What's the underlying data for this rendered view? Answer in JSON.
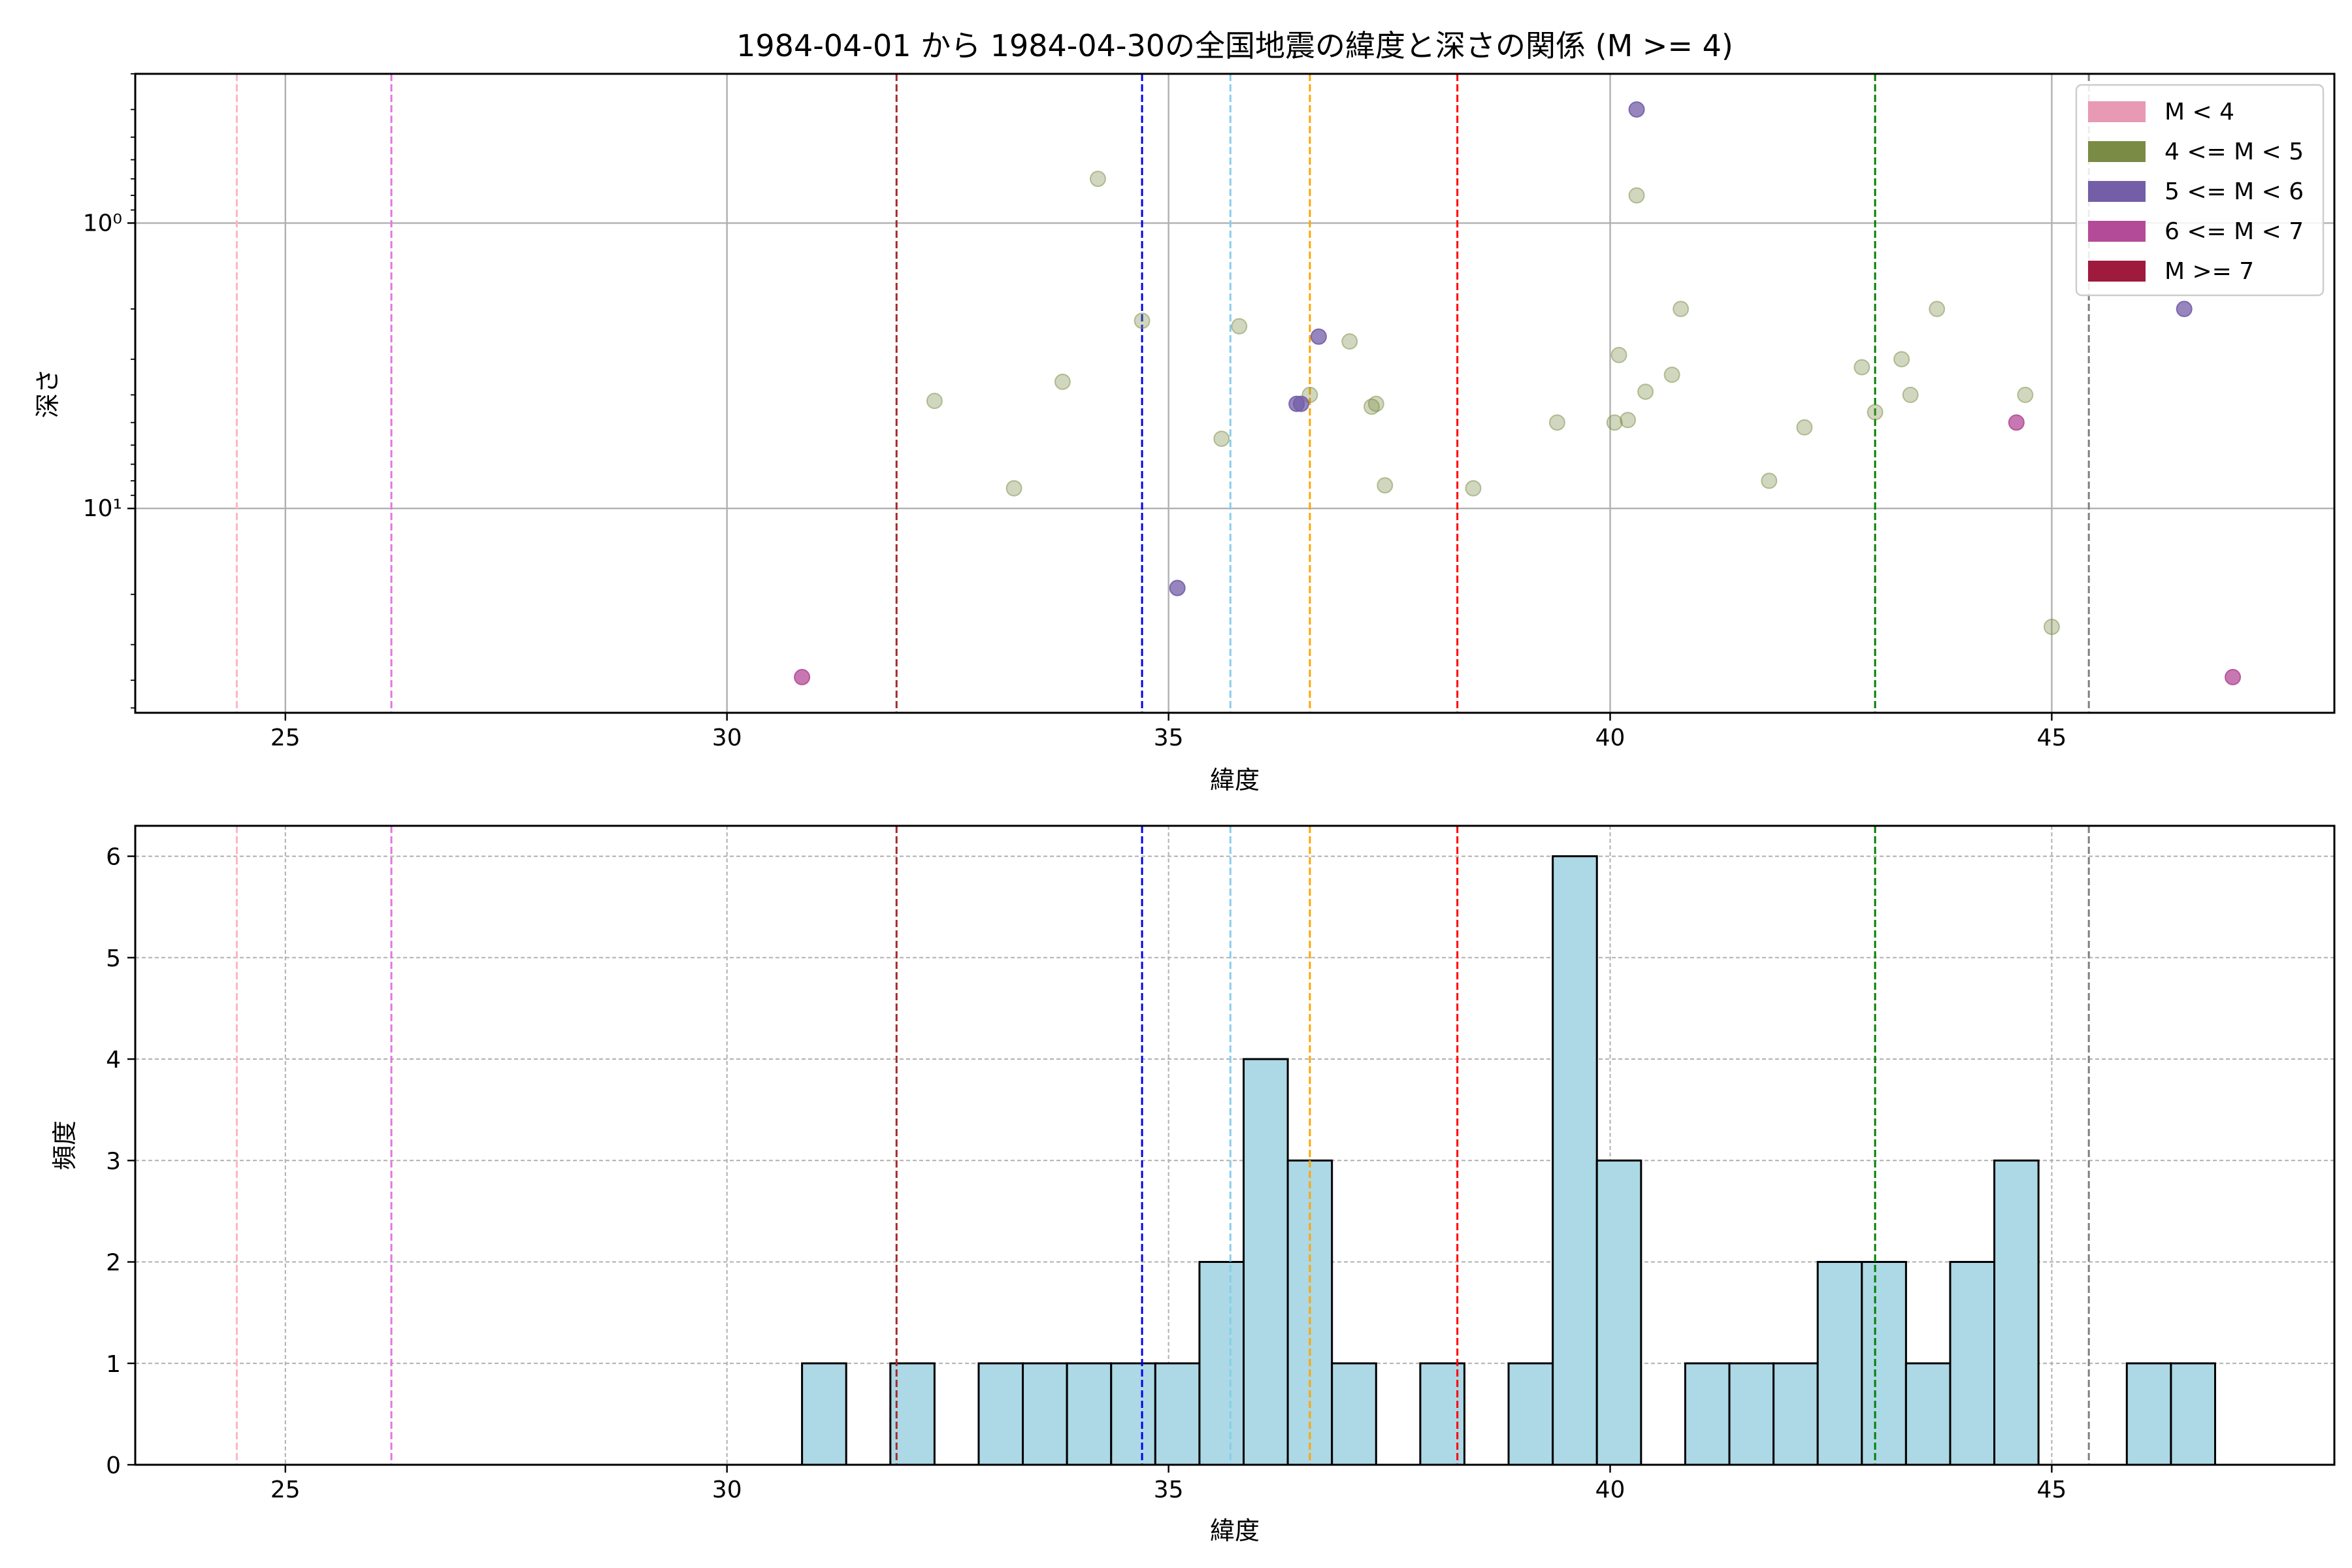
{
  "chart_data": [
    {
      "type": "scatter",
      "title": "1984-04-01 から 1984-04-30の全国地震の緯度と深さの関係 (M >= 4)",
      "xlabel": "緯度",
      "ylabel": "深さ",
      "xlim": [
        23.3,
        48.2
      ],
      "ylim": [
        52,
        0.3
      ],
      "y_scale": "log",
      "y_inverted": true,
      "xticks": [
        25,
        30,
        35,
        40,
        45
      ],
      "xtick_labels": [
        "25",
        "30",
        "35",
        "40",
        "45"
      ],
      "yticks": [
        1,
        10
      ],
      "ytick_labels": [
        "10⁰",
        "10¹"
      ],
      "grid": true,
      "legend_position": "top-right",
      "legend": [
        {
          "label": "M < 4",
          "color": "#e899b4"
        },
        {
          "label": "4 <= M < 5",
          "color": "#7a8b45"
        },
        {
          "label": "5 <= M < 6",
          "color": "#735ea7"
        },
        {
          "label": "6 <= M < 7",
          "color": "#b44b98"
        },
        {
          "label": "M >= 7",
          "color": "#9e1b3d"
        }
      ],
      "vlines": [
        {
          "x": 24.45,
          "color": "#ffb6c1"
        },
        {
          "x": 26.2,
          "color": "#e377dc"
        },
        {
          "x": 31.92,
          "color": "#a52a2a"
        },
        {
          "x": 34.7,
          "color": "#0000ee"
        },
        {
          "x": 35.7,
          "color": "#87ceeb"
        },
        {
          "x": 36.6,
          "color": "#ffa500"
        },
        {
          "x": 38.27,
          "color": "#ff0000"
        },
        {
          "x": 43.0,
          "color": "#008000"
        },
        {
          "x": 45.42,
          "color": "#808080"
        }
      ],
      "series": [
        {
          "color": "#7a8b45",
          "opacity": 0.35,
          "points": [
            {
              "x": 32.35,
              "y": 4.2
            },
            {
              "x": 33.25,
              "y": 8.5
            },
            {
              "x": 33.8,
              "y": 3.6
            },
            {
              "x": 34.2,
              "y": 0.7
            },
            {
              "x": 34.7,
              "y": 2.2
            },
            {
              "x": 35.6,
              "y": 5.7
            },
            {
              "x": 35.8,
              "y": 2.3
            },
            {
              "x": 36.6,
              "y": 4.0
            },
            {
              "x": 37.05,
              "y": 2.6
            },
            {
              "x": 37.3,
              "y": 4.4
            },
            {
              "x": 37.35,
              "y": 4.3
            },
            {
              "x": 37.45,
              "y": 8.3
            },
            {
              "x": 38.45,
              "y": 8.5
            },
            {
              "x": 39.4,
              "y": 5.0
            },
            {
              "x": 40.05,
              "y": 5.0
            },
            {
              "x": 40.1,
              "y": 2.9
            },
            {
              "x": 40.2,
              "y": 4.9
            },
            {
              "x": 40.3,
              "y": 0.8
            },
            {
              "x": 40.4,
              "y": 3.9
            },
            {
              "x": 40.7,
              "y": 3.4
            },
            {
              "x": 40.8,
              "y": 2.0
            },
            {
              "x": 41.8,
              "y": 8.0
            },
            {
              "x": 42.2,
              "y": 5.2
            },
            {
              "x": 42.85,
              "y": 3.2
            },
            {
              "x": 43.0,
              "y": 4.6
            },
            {
              "x": 43.3,
              "y": 3.0
            },
            {
              "x": 43.4,
              "y": 4.0
            },
            {
              "x": 43.7,
              "y": 2.0
            },
            {
              "x": 44.7,
              "y": 4.0
            },
            {
              "x": 45.0,
              "y": 26.0
            }
          ]
        },
        {
          "color": "#735ea7",
          "opacity": 0.75,
          "points": [
            {
              "x": 35.1,
              "y": 19.0
            },
            {
              "x": 36.45,
              "y": 4.3
            },
            {
              "x": 36.5,
              "y": 4.3
            },
            {
              "x": 36.7,
              "y": 2.5
            },
            {
              "x": 40.3,
              "y": 0.4
            },
            {
              "x": 46.5,
              "y": 2.0
            }
          ]
        },
        {
          "color": "#b44b98",
          "opacity": 0.75,
          "points": [
            {
              "x": 30.85,
              "y": 39.0
            },
            {
              "x": 44.6,
              "y": 5.0
            },
            {
              "x": 47.05,
              "y": 39.0
            }
          ]
        }
      ]
    },
    {
      "type": "bar",
      "subtype": "histogram",
      "xlabel": "緯度",
      "ylabel": "頻度",
      "xlim": [
        23.3,
        48.2
      ],
      "ylim": [
        0,
        6.3
      ],
      "xticks": [
        25,
        30,
        35,
        40,
        45
      ],
      "xtick_labels": [
        "25",
        "30",
        "35",
        "40",
        "45"
      ],
      "yticks": [
        0,
        1,
        2,
        3,
        4,
        5,
        6
      ],
      "ytick_labels": [
        "0",
        "1",
        "2",
        "3",
        "4",
        "5",
        "6"
      ],
      "grid": true,
      "bar_color": "#add8e6",
      "bin_start": 30.85,
      "bin_width": 0.5,
      "counts": [
        1,
        0,
        1,
        0,
        1,
        1,
        1,
        1,
        1,
        2,
        4,
        3,
        1,
        0,
        1,
        0,
        1,
        6,
        3,
        0,
        1,
        1,
        1,
        2,
        2,
        1,
        2,
        3,
        0,
        0,
        1,
        1
      ],
      "vlines": [
        {
          "x": 24.45,
          "color": "#ffb6c1"
        },
        {
          "x": 26.2,
          "color": "#e377dc"
        },
        {
          "x": 31.92,
          "color": "#a52a2a"
        },
        {
          "x": 34.7,
          "color": "#0000ee"
        },
        {
          "x": 35.7,
          "color": "#87ceeb"
        },
        {
          "x": 36.6,
          "color": "#ffa500"
        },
        {
          "x": 38.27,
          "color": "#ff0000"
        },
        {
          "x": 43.0,
          "color": "#008000"
        },
        {
          "x": 45.42,
          "color": "#808080"
        }
      ]
    }
  ]
}
